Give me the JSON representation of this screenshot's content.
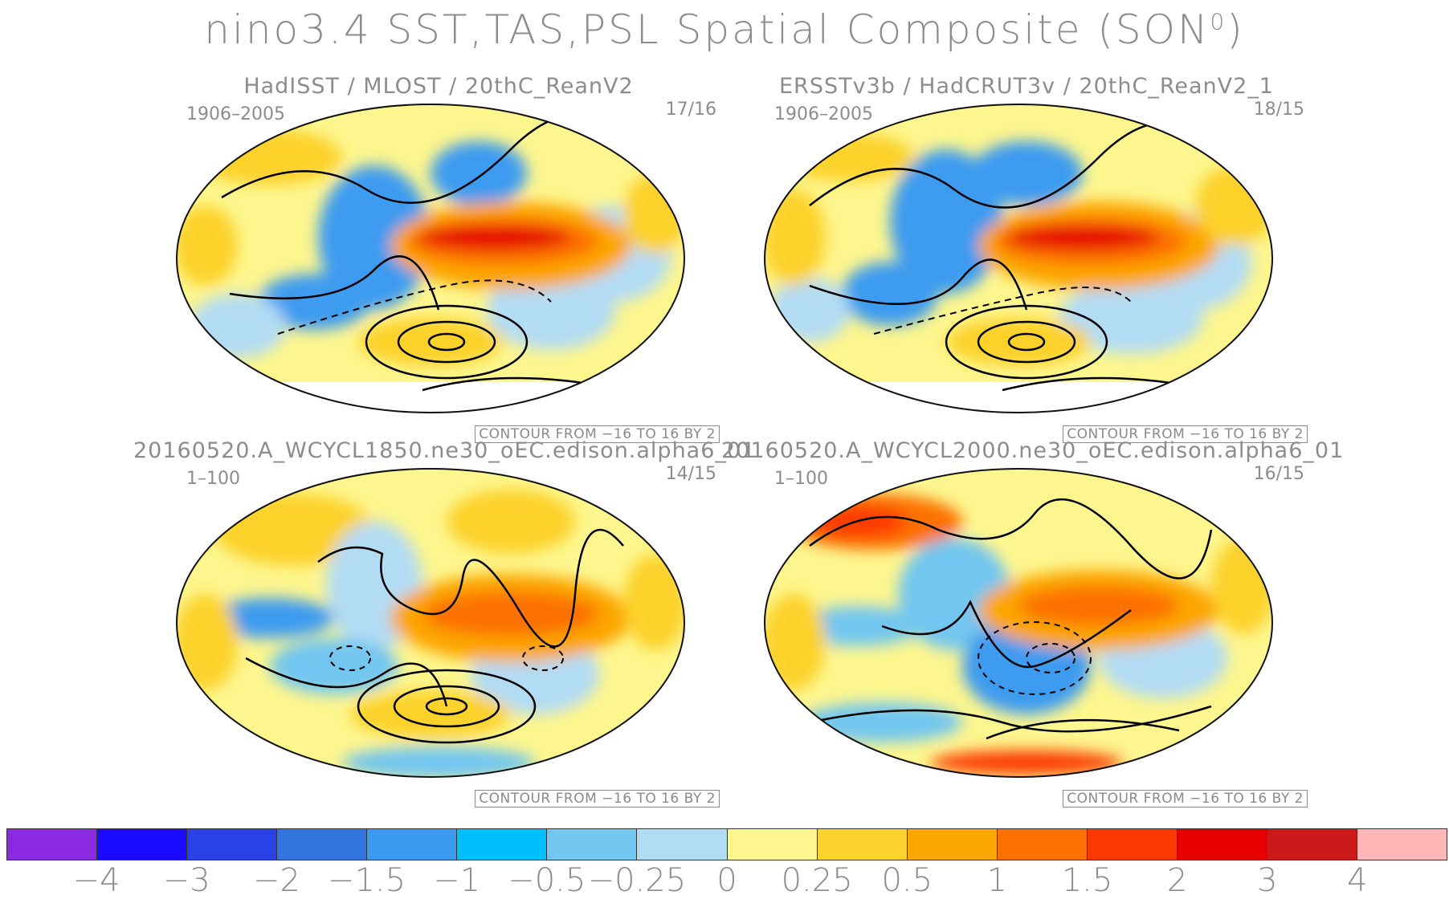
{
  "title": "nino3.4 SST,TAS,PSL Spatial Composite (SON",
  "title_sup": "0",
  "title_close": ")",
  "panels": [
    {
      "title": "HadISST / MLOST / 20thC_ReanV2",
      "period": "1906–2005",
      "ratio": "17/16",
      "contour_note": "CONTOUR FROM −16 TO 16 BY 2"
    },
    {
      "title": "ERSSTv3b / HadCRUT3v / 20thC_ReanV2_1",
      "period": "1906–2005",
      "ratio": "18/15",
      "contour_note": "CONTOUR FROM −16 TO 16 BY 2"
    },
    {
      "title": "20160520.A_WCYCL1850.ne30_oEC.edison.alpha6_01",
      "period": "1–100",
      "ratio": "14/15",
      "contour_note": "CONTOUR FROM −16 TO 16 BY 2"
    },
    {
      "title": "20160520.A_WCYCL2000.ne30_oEC.edison.alpha6_01",
      "period": "1–100",
      "ratio": "16/15",
      "contour_note": "CONTOUR FROM −16 TO 16 BY 2"
    }
  ],
  "colorbar": {
    "colors": [
      "#8a2be2",
      "#1a0aff",
      "#2a42e8",
      "#3476e0",
      "#3c9bf0",
      "#00bfff",
      "#72c6f0",
      "#b2dcf4",
      "#fdf68e",
      "#fcd22c",
      "#fca600",
      "#fc7100",
      "#fc3a00",
      "#e60000",
      "#cc1a1a",
      "#ffb6b6"
    ],
    "labels": [
      "−4",
      "−3",
      "−2",
      "−1.5",
      "−1",
      "−0.5",
      "−0.25",
      "0",
      "0.25",
      "0.5",
      "1",
      "1.5",
      "2",
      "3",
      "4"
    ]
  }
}
